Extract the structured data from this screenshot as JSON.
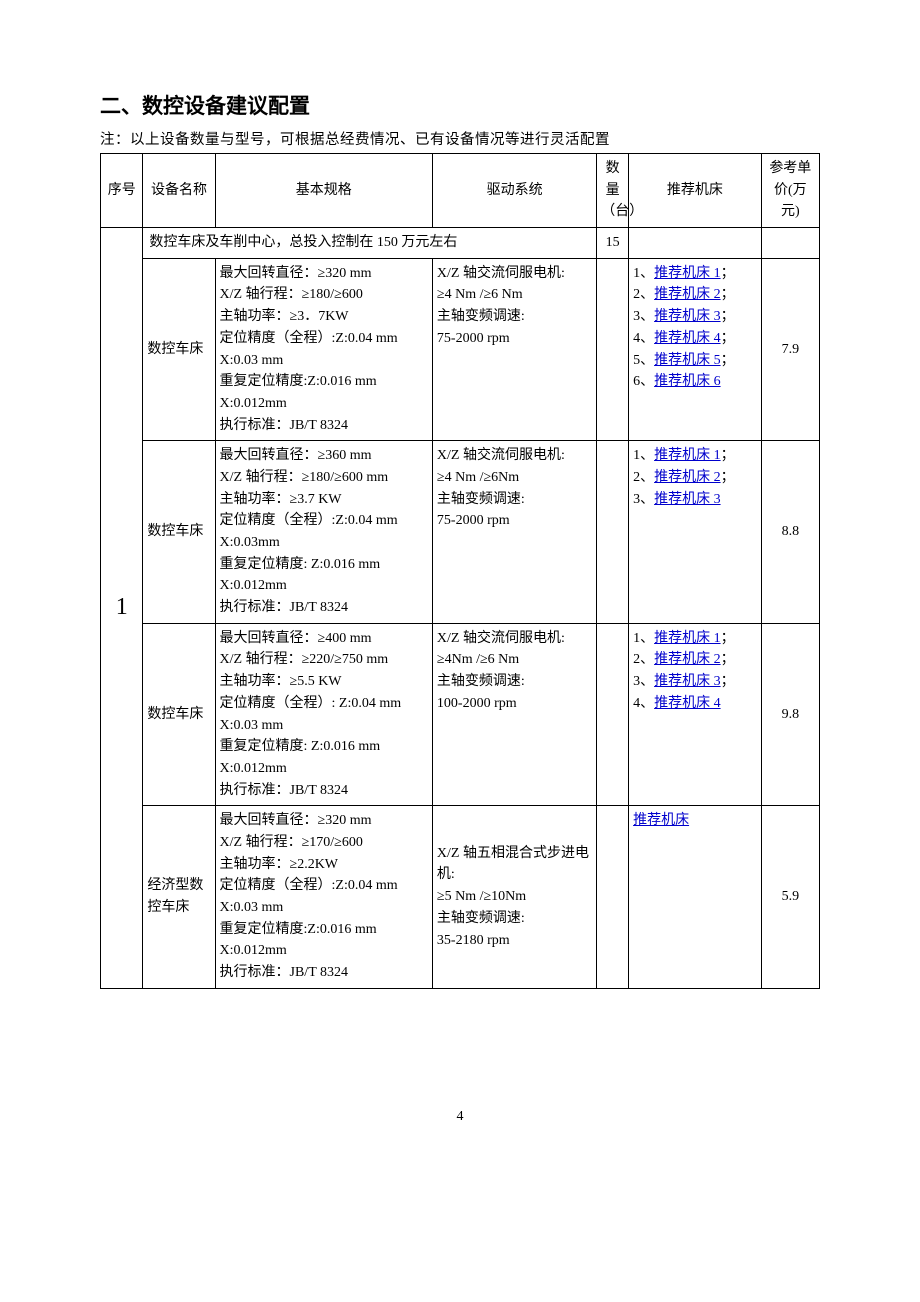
{
  "heading": "二、数控设备建议配置",
  "note": "注：以上设备数量与型号，可根据总经费情况、已有设备情况等进行灵活配置",
  "page_number": "4",
  "columns": {
    "idx": "序号",
    "name": "设备名称",
    "spec": "基本规格",
    "drive": "驱动系统",
    "qty": "数量（台）",
    "rec": "推荐机床",
    "price": "参考单价(万元)"
  },
  "group": {
    "idx": "1",
    "section_title": "数控车床及车削中心，总投入控制在 150 万元左右",
    "section_qty": "15"
  },
  "rows": [
    {
      "name": "数控车床",
      "spec": "最大回转直径：≥320 mm\nX/Z 轴行程：≥180/≥600\n主轴功率：≥3．7KW\n定位精度（全程）:Z:0.04 mm\nX:0.03 mm\n重复定位精度:Z:0.016 mm\nX:0.012mm\n执行标准：JB/T 8324",
      "drive": "X/Z 轴交流伺服电机:\n≥4 Nm /≥6 Nm\n主轴变频调速:\n75-2000 rpm",
      "drive_align": "top",
      "recs": [
        {
          "n": "1",
          "label": "推荐机床 1",
          "sep": "；"
        },
        {
          "n": "2",
          "label": "推荐机床 2",
          "sep": "；"
        },
        {
          "n": "3",
          "label": "推荐机床 3",
          "sep": "；"
        },
        {
          "n": "4",
          "label": "推荐机床 4",
          "sep": "；"
        },
        {
          "n": "5",
          "label": "推荐机床 5",
          "sep": "；"
        },
        {
          "n": "6",
          "label": "推荐机床 6",
          "sep": ""
        }
      ],
      "price": "7.9"
    },
    {
      "name": "数控车床",
      "spec": "最大回转直径：≥360 mm\nX/Z 轴行程：≥180/≥600 mm\n主轴功率：≥3.7 KW\n定位精度（全程）:Z:0.04 mm\nX:0.03mm\n重复定位精度: Z:0.016 mm\nX:0.012mm\n执行标准：JB/T 8324",
      "drive": "X/Z 轴交流伺服电机:\n≥4 Nm /≥6Nm\n主轴变频调速:\n75-2000 rpm",
      "drive_align": "top",
      "recs": [
        {
          "n": "1",
          "label": "推荐机床 1",
          "sep": "；"
        },
        {
          "n": "2",
          "label": "推荐机床 2",
          "sep": "；"
        },
        {
          "n": "3",
          "label": "推荐机床 3",
          "sep": ""
        }
      ],
      "price": "8.8"
    },
    {
      "name": "数控车床",
      "spec": "最大回转直径：≥400 mm\nX/Z 轴行程：≥220/≥750 mm\n主轴功率：≥5.5 KW\n定位精度（全程）: Z:0.04 mm\nX:0.03 mm\n重复定位精度: Z:0.016 mm\nX:0.012mm\n执行标准：JB/T 8324",
      "drive": "X/Z 轴交流伺服电机:\n≥4Nm /≥6 Nm\n主轴变频调速:\n100-2000 rpm",
      "drive_align": "top",
      "recs": [
        {
          "n": "1",
          "label": "推荐机床 1",
          "sep": "；"
        },
        {
          "n": "2",
          "label": "推荐机床 2",
          "sep": "；"
        },
        {
          "n": "3",
          "label": "推荐机床 3",
          "sep": "；"
        },
        {
          "n": "4",
          "label": "推荐机床 4",
          "sep": ""
        }
      ],
      "price": "9.8"
    },
    {
      "name": "经济型数控车床",
      "spec": "最大回转直径：≥320 mm\nX/Z 轴行程：≥170/≥600\n主轴功率：≥2.2KW\n定位精度（全程）:Z:0.04 mm\nX:0.03 mm\n重复定位精度:Z:0.016 mm\nX:0.012mm\n执行标准：JB/T 8324",
      "drive": "X/Z 轴五相混合式步进电机:\n≥5 Nm /≥10Nm\n主轴变频调速:\n35-2180 rpm",
      "drive_align": "mid",
      "recs": [
        {
          "n": "",
          "label": "推荐机床",
          "sep": ""
        }
      ],
      "price": "5.9"
    }
  ]
}
